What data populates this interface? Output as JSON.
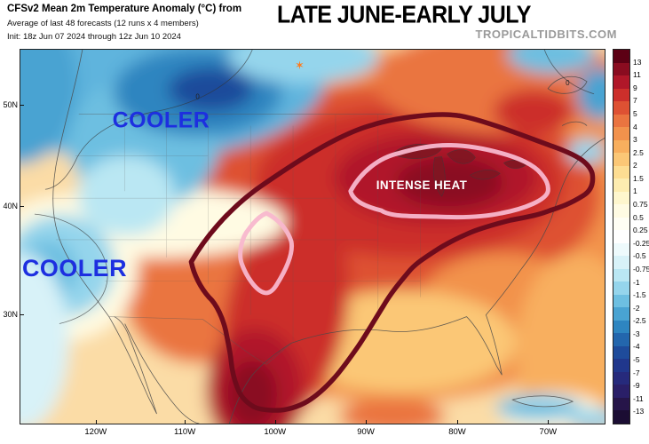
{
  "header": {
    "title_prefix": "CFSv2 Mean 2m Temperature Anomaly (°C) from",
    "title_main": "LATE JUNE-EARLY JULY",
    "subtitle": "Average of last 48 forecasts (12 runs x 4 members)",
    "init_text": "Init: 18z Jun 07 2024 through 12z Jun 10 2024",
    "watermark": "TROPICALTIDBITS.COM"
  },
  "map": {
    "annotations": {
      "cooler_northwest": "COOLER",
      "cooler_california": "COOLER",
      "intense_heat": "INTENSE HEAT"
    },
    "contour_zero_label": "0",
    "marker_glyph": "✶",
    "heat_contour_color": "#6e0b1c",
    "heat_inner_contour_color": "#f8b7cd",
    "annotation_blue": "#1d2fe0"
  },
  "axes": {
    "latitude_labels": [
      "50N",
      "40N",
      "30N"
    ],
    "longitude_labels": [
      "120W",
      "110W",
      "100W",
      "90W",
      "80W",
      "70W"
    ]
  },
  "colorbar": {
    "units": "°C",
    "tick_labels": [
      "13",
      "11",
      "9",
      "7",
      "5",
      "4",
      "3",
      "2.5",
      "2",
      "1.5",
      "1",
      "0.75",
      "0.5",
      "0.25",
      "-0.25",
      "-0.5",
      "-0.75",
      "-1",
      "-1.5",
      "-2",
      "-2.5",
      "-3",
      "-4",
      "-5",
      "-7",
      "-9",
      "-11",
      "-13"
    ],
    "colors": [
      "#5c0014",
      "#8a0c20",
      "#b01729",
      "#cc2f2b",
      "#de5133",
      "#ea7440",
      "#f2924c",
      "#f8af5e",
      "#fbc776",
      "#fddd92",
      "#fdecb0",
      "#fef6cd",
      "#fffbe3",
      "#fffef4",
      "#ffffff",
      "#eefafc",
      "#d8f2f8",
      "#bae7f3",
      "#95d5ec",
      "#6dbfe1",
      "#49a3d2",
      "#2e85c0",
      "#2366ad",
      "#1e4b9b",
      "#20378c",
      "#262a7c",
      "#2a1f68",
      "#261549",
      "#1b0d33"
    ]
  }
}
